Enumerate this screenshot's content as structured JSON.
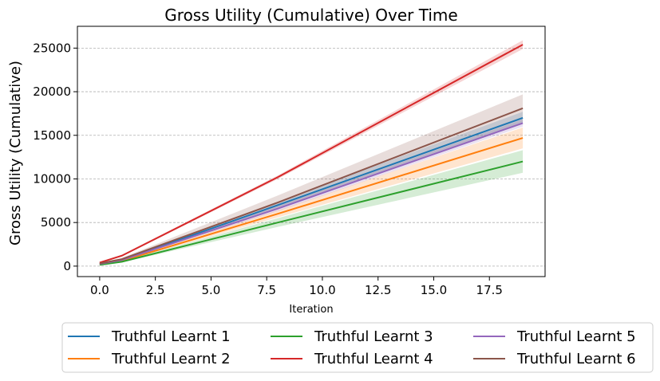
{
  "chart_data": {
    "type": "line",
    "title": "Gross Utility (Cumulative) Over Time",
    "xlabel": "Iteration",
    "ylabel": "Gross Utility (Cumulative)",
    "xlim": [
      -1,
      20
    ],
    "ylim": [
      -1200,
      27500
    ],
    "xticks": [
      0.0,
      2.5,
      5.0,
      7.5,
      10.0,
      12.5,
      15.0,
      17.5
    ],
    "xtick_labels": [
      "0.0",
      "2.5",
      "5.0",
      "7.5",
      "10.0",
      "12.5",
      "15.0",
      "17.5"
    ],
    "yticks": [
      0,
      5000,
      10000,
      15000,
      20000,
      25000
    ],
    "ytick_labels": [
      "0",
      "5000",
      "10000",
      "15000",
      "20000",
      "25000"
    ],
    "grid": "horizontal dashed",
    "legend_position": "bottom, below axes, 3 columns",
    "x": [
      0,
      1,
      8,
      19
    ],
    "series": [
      {
        "name": "Truthful Learnt 1",
        "color": "#1f77b4",
        "values": [
          250,
          700,
          7000,
          17000
        ],
        "lower": [
          200,
          600,
          6600,
          16300
        ],
        "upper": [
          300,
          800,
          7400,
          17700
        ]
      },
      {
        "name": "Truthful Learnt 2",
        "color": "#ff7f0e",
        "values": [
          200,
          600,
          6000,
          14700
        ],
        "lower": [
          150,
          520,
          5600,
          13500
        ],
        "upper": [
          250,
          680,
          6400,
          15900
        ]
      },
      {
        "name": "Truthful Learnt 3",
        "color": "#2ca02c",
        "values": [
          150,
          500,
          5000,
          12000
        ],
        "lower": [
          100,
          420,
          4500,
          10700
        ],
        "upper": [
          200,
          580,
          5500,
          13300
        ]
      },
      {
        "name": "Truthful Learnt 4",
        "color": "#d62728",
        "values": [
          400,
          1200,
          10200,
          25400
        ],
        "lower": [
          350,
          1100,
          10000,
          24900
        ],
        "upper": [
          450,
          1300,
          10400,
          25900
        ]
      },
      {
        "name": "Truthful Learnt 5",
        "color": "#9467bd",
        "values": [
          250,
          700,
          6600,
          16400
        ],
        "lower": [
          200,
          620,
          6300,
          16000
        ],
        "upper": [
          300,
          780,
          6900,
          16800
        ]
      },
      {
        "name": "Truthful Learnt 6",
        "color": "#8c564b",
        "values": [
          300,
          800,
          7300,
          18100
        ],
        "lower": [
          200,
          650,
          6500,
          16500
        ],
        "upper": [
          400,
          950,
          8100,
          19700
        ]
      }
    ]
  }
}
